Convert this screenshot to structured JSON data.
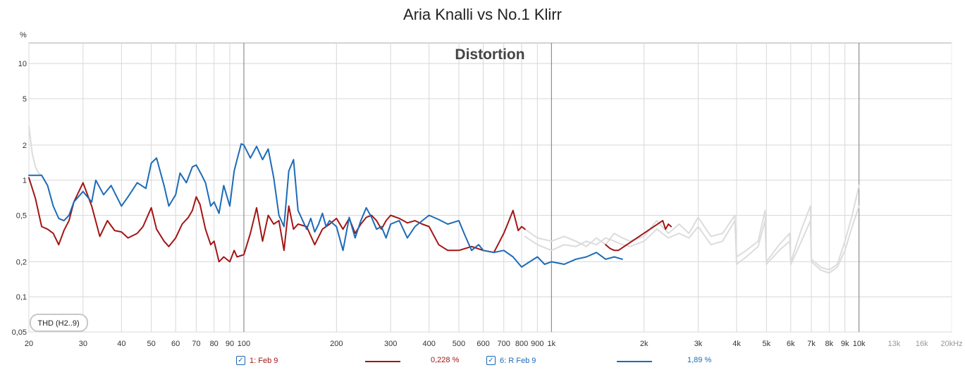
{
  "chart_data": {
    "type": "line",
    "title": "Aria Knalli vs No.1 Klirr",
    "subtitle": "Distortion",
    "ylabel": "%",
    "xscale": "log",
    "yscale": "log",
    "xlim": [
      20,
      20000
    ],
    "ylim": [
      0.05,
      15
    ],
    "grid": true,
    "y_ticks": [
      {
        "v": 10,
        "label": "10"
      },
      {
        "v": 5,
        "label": "5"
      },
      {
        "v": 2,
        "label": "2"
      },
      {
        "v": 1,
        "label": "1"
      },
      {
        "v": 0.5,
        "label": "0,5"
      },
      {
        "v": 0.2,
        "label": "0,2"
      },
      {
        "v": 0.1,
        "label": "0,1"
      },
      {
        "v": 0.05,
        "label": "0,05"
      }
    ],
    "x_ticks": [
      {
        "v": 20,
        "label": "20"
      },
      {
        "v": 30,
        "label": "30"
      },
      {
        "v": 40,
        "label": "40"
      },
      {
        "v": 50,
        "label": "50"
      },
      {
        "v": 60,
        "label": "60"
      },
      {
        "v": 70,
        "label": "70"
      },
      {
        "v": 80,
        "label": "80"
      },
      {
        "v": 90,
        "label": "90"
      },
      {
        "v": 100,
        "label": "100"
      },
      {
        "v": 200,
        "label": "200"
      },
      {
        "v": 300,
        "label": "300"
      },
      {
        "v": 400,
        "label": "400"
      },
      {
        "v": 500,
        "label": "500"
      },
      {
        "v": 600,
        "label": "600"
      },
      {
        "v": 700,
        "label": "700"
      },
      {
        "v": 800,
        "label": "800"
      },
      {
        "v": 900,
        "label": "900"
      },
      {
        "v": 1000,
        "label": "1k"
      },
      {
        "v": 2000,
        "label": "2k"
      },
      {
        "v": 3000,
        "label": "3k"
      },
      {
        "v": 4000,
        "label": "4k"
      },
      {
        "v": 5000,
        "label": "5k"
      },
      {
        "v": 6000,
        "label": "6k"
      },
      {
        "v": 7000,
        "label": "7k"
      },
      {
        "v": 8000,
        "label": "8k"
      },
      {
        "v": 9000,
        "label": "9k"
      },
      {
        "v": 10000,
        "label": "10k"
      },
      {
        "v": 13000,
        "label": "13k"
      },
      {
        "v": 16000,
        "label": "16k"
      },
      {
        "v": 20000,
        "label": "20kHz"
      }
    ],
    "annotation": "THD (H2..9)",
    "series": [
      {
        "name": "1: Feb 9",
        "color": "#a31515",
        "readout": "0,228 %",
        "x": [
          20,
          21,
          22,
          23,
          24,
          25,
          26,
          27,
          28,
          30,
          32,
          34,
          36,
          38,
          40,
          42,
          45,
          47,
          50,
          52,
          55,
          57,
          60,
          63,
          66,
          68,
          70,
          72,
          75,
          78,
          80,
          83,
          86,
          90,
          93,
          95,
          100,
          105,
          110,
          115,
          120,
          125,
          130,
          135,
          140,
          145,
          150,
          160,
          170,
          180,
          190,
          200,
          210,
          220,
          230,
          240,
          250,
          260,
          270,
          280,
          290,
          300,
          320,
          340,
          360,
          380,
          400,
          430,
          460,
          500,
          550,
          600,
          650,
          700,
          720,
          750,
          780,
          800,
          820,
          1500,
          1550,
          1600,
          1650,
          2300,
          2350,
          2400,
          2450
        ],
        "y": [
          1.05,
          0.7,
          0.4,
          0.38,
          0.35,
          0.28,
          0.37,
          0.45,
          0.65,
          0.95,
          0.6,
          0.33,
          0.45,
          0.37,
          0.36,
          0.32,
          0.35,
          0.4,
          0.58,
          0.38,
          0.3,
          0.27,
          0.32,
          0.42,
          0.48,
          0.55,
          0.72,
          0.62,
          0.38,
          0.28,
          0.3,
          0.2,
          0.22,
          0.2,
          0.25,
          0.22,
          0.23,
          0.35,
          0.58,
          0.3,
          0.5,
          0.42,
          0.45,
          0.25,
          0.6,
          0.38,
          0.42,
          0.4,
          0.28,
          0.38,
          0.42,
          0.47,
          0.38,
          0.47,
          0.35,
          0.42,
          0.48,
          0.5,
          0.45,
          0.38,
          0.45,
          0.5,
          0.47,
          0.43,
          0.45,
          0.42,
          0.4,
          0.28,
          0.25,
          0.25,
          0.27,
          0.25,
          0.24,
          0.35,
          0.42,
          0.55,
          0.37,
          0.4,
          0.38,
          0.28,
          0.26,
          0.25,
          0.25,
          0.45,
          0.38,
          0.42,
          0.4
        ]
      },
      {
        "name": "6: R Feb 9",
        "color": "#1c6bb8",
        "readout": "1,89 %",
        "x": [
          20,
          21,
          22,
          23,
          24,
          25,
          26,
          27,
          28,
          30,
          32,
          33,
          35,
          37,
          40,
          42,
          45,
          48,
          50,
          52,
          55,
          57,
          60,
          62,
          65,
          68,
          70,
          73,
          75,
          78,
          80,
          83,
          86,
          90,
          93,
          95,
          98,
          100,
          105,
          110,
          115,
          120,
          125,
          130,
          135,
          140,
          145,
          150,
          160,
          165,
          170,
          175,
          180,
          185,
          190,
          200,
          210,
          220,
          230,
          240,
          250,
          260,
          270,
          280,
          290,
          300,
          320,
          340,
          360,
          380,
          400,
          430,
          460,
          500,
          520,
          550,
          580,
          600,
          650,
          700,
          750,
          800,
          850,
          900,
          950,
          1000,
          1100,
          1200,
          1300,
          1400,
          1500,
          1600,
          1700
        ],
        "y": [
          1.1,
          1.1,
          1.1,
          0.9,
          0.6,
          0.47,
          0.45,
          0.5,
          0.65,
          0.8,
          0.65,
          1.0,
          0.75,
          0.9,
          0.6,
          0.72,
          0.95,
          0.85,
          1.4,
          1.55,
          0.9,
          0.6,
          0.75,
          1.15,
          0.95,
          1.3,
          1.35,
          1.1,
          0.95,
          0.6,
          0.65,
          0.52,
          0.9,
          0.6,
          1.2,
          1.5,
          2.05,
          2.0,
          1.55,
          1.95,
          1.5,
          1.85,
          1.05,
          0.5,
          0.4,
          1.2,
          1.5,
          0.55,
          0.38,
          0.47,
          0.36,
          0.42,
          0.52,
          0.4,
          0.45,
          0.4,
          0.25,
          0.48,
          0.32,
          0.45,
          0.58,
          0.48,
          0.38,
          0.4,
          0.32,
          0.42,
          0.45,
          0.32,
          0.4,
          0.45,
          0.5,
          0.46,
          0.42,
          0.45,
          0.35,
          0.25,
          0.28,
          0.25,
          0.24,
          0.25,
          0.22,
          0.18,
          0.2,
          0.22,
          0.19,
          0.2,
          0.19,
          0.21,
          0.22,
          0.24,
          0.21,
          0.22,
          0.21
        ]
      },
      {
        "name": "",
        "color": "#dcdcdc",
        "x": [
          20,
          20.5,
          21,
          21.5,
          22,
          820,
          900,
          1000,
          1100,
          1200,
          1300,
          1400,
          1500,
          1600,
          1700,
          1800,
          2000,
          2200,
          2400,
          2600,
          2800,
          3000,
          3300,
          3600,
          3950,
          4000,
          4300,
          4700,
          4950,
          5000,
          5500,
          5950,
          6000,
          6500,
          6950,
          7000,
          7500,
          8000,
          8500,
          9000,
          9500,
          10000
        ],
        "y": [
          2.9,
          1.7,
          1.3,
          1.15,
          1.1,
          0.33,
          0.28,
          0.25,
          0.28,
          0.27,
          0.3,
          0.28,
          0.32,
          0.3,
          0.28,
          0.27,
          0.3,
          0.38,
          0.32,
          0.35,
          0.32,
          0.4,
          0.28,
          0.3,
          0.45,
          0.22,
          0.25,
          0.3,
          0.55,
          0.2,
          0.28,
          0.35,
          0.2,
          0.38,
          0.6,
          0.2,
          0.17,
          0.16,
          0.18,
          0.25,
          0.4,
          0.6
        ]
      },
      {
        "name": "",
        "color": "#dcdcdc",
        "x": [
          820,
          900,
          1000,
          1100,
          1200,
          1300,
          1400,
          1500,
          1600,
          1700,
          1800,
          2000,
          2200,
          2400,
          2600,
          2800,
          3000,
          3300,
          3600,
          3950,
          4000,
          4300,
          4700,
          4950,
          5000,
          5500,
          5950,
          6000,
          6500,
          6950,
          7000,
          7500,
          8000,
          8500,
          9000,
          9500,
          10000
        ],
        "y": [
          0.38,
          0.32,
          0.3,
          0.33,
          0.3,
          0.27,
          0.32,
          0.28,
          0.35,
          0.32,
          0.3,
          0.33,
          0.45,
          0.35,
          0.42,
          0.35,
          0.48,
          0.33,
          0.35,
          0.5,
          0.19,
          0.22,
          0.27,
          0.45,
          0.19,
          0.25,
          0.3,
          0.19,
          0.3,
          0.45,
          0.21,
          0.18,
          0.17,
          0.19,
          0.3,
          0.5,
          0.9
        ]
      }
    ]
  },
  "legend": {
    "items": [
      {
        "label": "1: Feb 9",
        "value": "0,228 %",
        "checked": true
      },
      {
        "label": "6: R Feb 9",
        "value": "1,89 %",
        "checked": true
      }
    ]
  }
}
